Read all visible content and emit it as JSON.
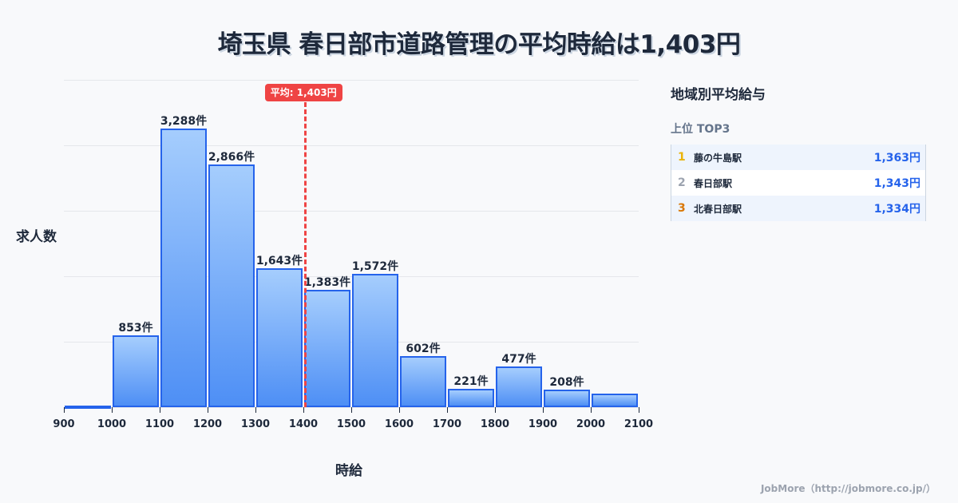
{
  "title": "埼玉県 春日部市道路管理の平均時給は1,403円",
  "chart_data": {
    "type": "bar",
    "title": "埼玉県 春日部市道路管理の平均時給は1,403円",
    "xlabel": "時給",
    "ylabel": "求人数",
    "categories": [
      "900-1000",
      "1000-1100",
      "1100-1200",
      "1200-1300",
      "1300-1400",
      "1400-1500",
      "1500-1600",
      "1600-1700",
      "1700-1800",
      "1800-1900",
      "1900-2000",
      "2000-2100"
    ],
    "x_ticks": [
      "900",
      "1000",
      "1100",
      "1200",
      "1300",
      "1400",
      "1500",
      "1600",
      "1700",
      "1800",
      "1900",
      "2000",
      "2100"
    ],
    "values": [
      15,
      853,
      3288,
      2866,
      1643,
      1383,
      1572,
      602,
      221,
      477,
      208,
      160
    ],
    "labels": [
      "",
      "853件",
      "3,288件",
      "2,866件",
      "1,643件",
      "1,383件",
      "1,572件",
      "602件",
      "221件",
      "477件",
      "208件",
      ""
    ],
    "xlim": [
      900,
      2100
    ],
    "ylim": [
      0,
      3865
    ],
    "grid": true,
    "average": {
      "value": 1403,
      "label": "平均: 1,403円",
      "color": "#ef4444"
    },
    "bar_color": "#2563eb"
  },
  "axis": {
    "y_title": "求人数",
    "x_title": "時給"
  },
  "sidebar": {
    "title": "地域別平均給与",
    "subtitle": "上位 TOP3",
    "items": [
      {
        "rank": "1",
        "name": "藤の牛島駅",
        "value": "1,363円",
        "rank_color": "#eab308"
      },
      {
        "rank": "2",
        "name": "春日部駅",
        "value": "1,343円",
        "rank_color": "#9ca3af"
      },
      {
        "rank": "3",
        "name": "北春日部駅",
        "value": "1,334円",
        "rank_color": "#d97706"
      }
    ]
  },
  "footer": "JobMore（http://jobmore.co.jp/）"
}
